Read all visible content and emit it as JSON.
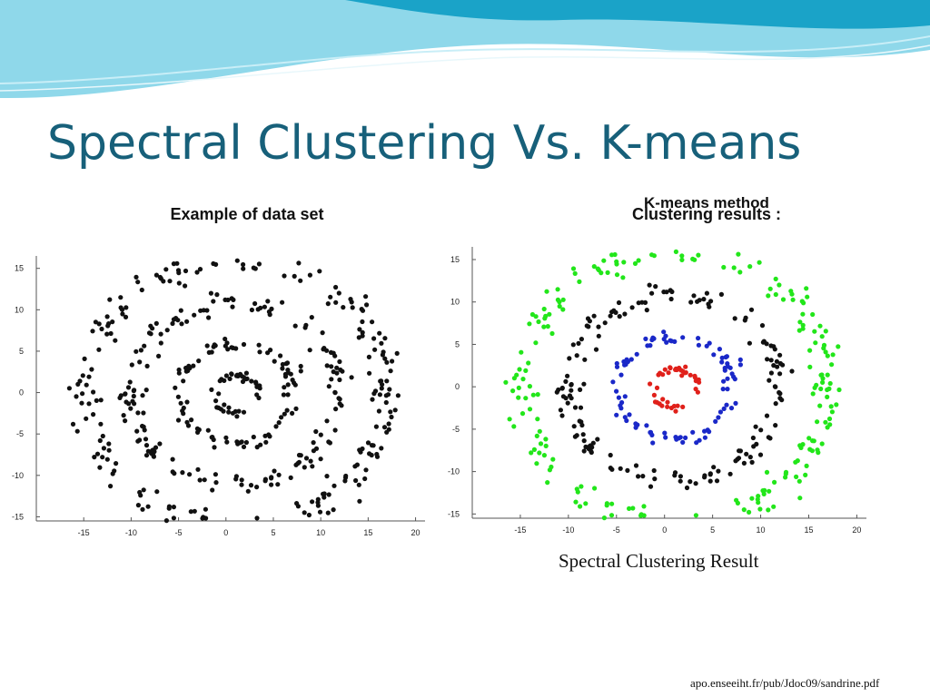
{
  "slide": {
    "title": "Spectral Clustering Vs. K-means",
    "caption": "Spectral Clustering Result",
    "source": "apo.enseeiht.fr/pub/Jdoc09/sandrine.pdf",
    "wave_colors": [
      "#1aa3c8",
      "#8fd8ea",
      "#c9eef7",
      "#e8f7fb"
    ]
  },
  "chart_data": [
    {
      "type": "scatter",
      "title": "Example of data set",
      "xlabel": "",
      "ylabel": "",
      "xlim": [
        -20,
        21
      ],
      "ylim": [
        -15.5,
        16.5
      ],
      "xticks": [
        -15,
        -10,
        -5,
        0,
        5,
        10,
        15,
        20
      ],
      "yticks": [
        -15,
        -10,
        -5,
        0,
        5,
        10,
        15
      ],
      "grid": false,
      "legend": "none",
      "generator": "four noisy concentric rings centered near (1, 0)",
      "series": [
        {
          "ring_radius": 2.3,
          "noise": 0.3,
          "points": 40,
          "color": "#111111"
        },
        {
          "ring_radius": 6.0,
          "noise": 0.45,
          "points": 90,
          "color": "#111111"
        },
        {
          "ring_radius": 11.0,
          "noise": 0.7,
          "points": 160,
          "color": "#111111"
        },
        {
          "ring_radius": 16.0,
          "noise": 0.9,
          "points": 220,
          "color": "#111111"
        }
      ]
    },
    {
      "type": "scatter",
      "title": "Clustering results :",
      "overlapped_title": "K-means method",
      "xlabel": "",
      "ylabel": "",
      "xlim": [
        -20,
        21
      ],
      "ylim": [
        -15.5,
        16.5
      ],
      "xticks": [
        -15,
        -10,
        -5,
        0,
        5,
        10,
        15,
        20
      ],
      "yticks": [
        -15,
        -10,
        -5,
        0,
        5,
        10,
        15
      ],
      "grid": false,
      "legend": "none",
      "generator": "four noisy concentric rings centered near (1, 0), one color per cluster",
      "series": [
        {
          "ring_radius": 2.3,
          "noise": 0.3,
          "points": 40,
          "color": "#e0201a"
        },
        {
          "ring_radius": 6.0,
          "noise": 0.45,
          "points": 90,
          "color": "#1a28c8"
        },
        {
          "ring_radius": 11.0,
          "noise": 0.7,
          "points": 160,
          "color": "#111111"
        },
        {
          "ring_radius": 16.0,
          "noise": 0.9,
          "points": 220,
          "color": "#22e61a"
        }
      ]
    }
  ]
}
